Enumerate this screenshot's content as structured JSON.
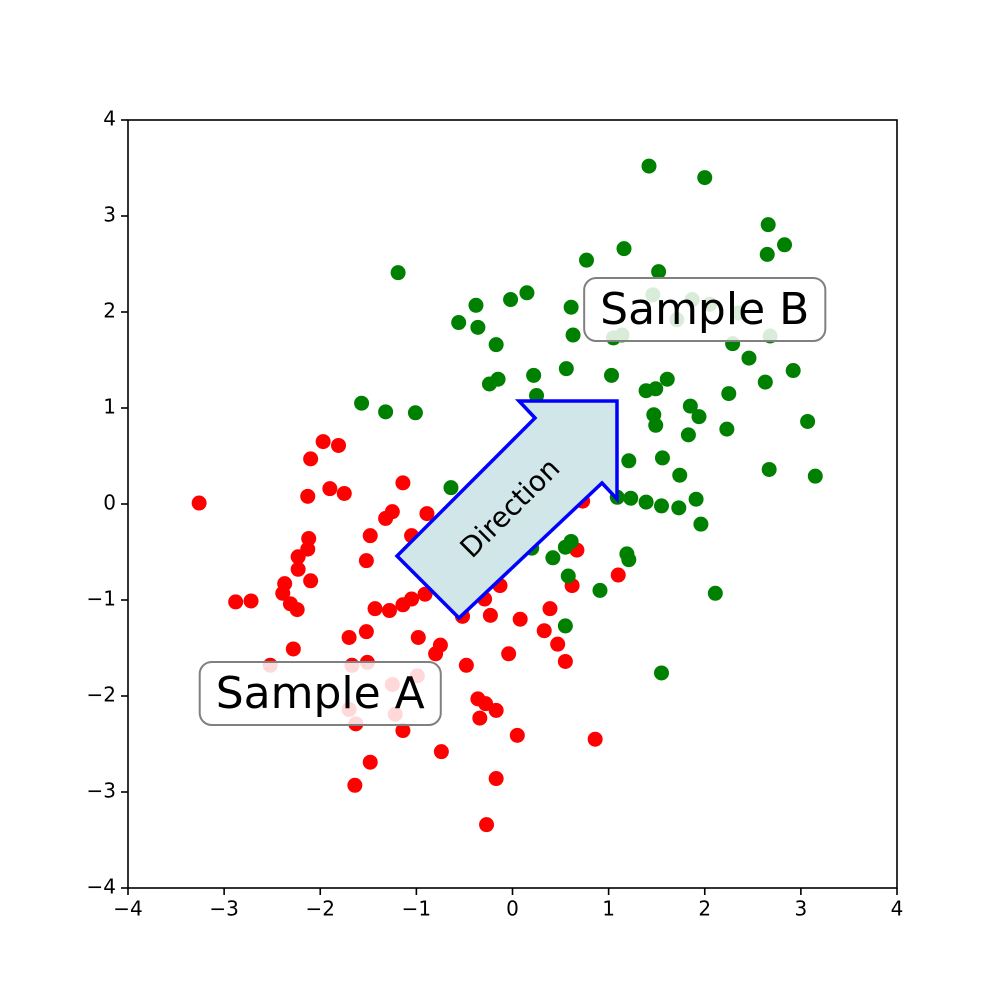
{
  "chart_data": {
    "type": "scatter",
    "xlim": [
      -4,
      4
    ],
    "ylim": [
      -4,
      4
    ],
    "xticks": [
      {
        "value": -4,
        "label": "−4"
      },
      {
        "value": -3,
        "label": "−3"
      },
      {
        "value": -2,
        "label": "−2"
      },
      {
        "value": -1,
        "label": "−1"
      },
      0,
      1,
      2,
      3,
      4
    ],
    "yticks": [
      {
        "value": -4,
        "label": "−4"
      },
      {
        "value": -3,
        "label": "−3"
      },
      {
        "value": -2,
        "label": "−2"
      },
      {
        "value": -1,
        "label": "−1"
      },
      0,
      1,
      2,
      3,
      4
    ],
    "series": [
      {
        "color": "red",
        "x": [
          -3.26,
          -2.88,
          -2.72,
          -1.97,
          -1.81,
          -2.1,
          -2.13,
          -1.9,
          -1.75,
          -1.14,
          -2.12,
          -2.13,
          -2.23,
          -2.23,
          -2.1,
          -2.37,
          -2.39,
          -2.31,
          -2.24,
          -1.48,
          -1.52,
          -1.43,
          -1.28,
          -1.14,
          -1.05,
          -0.91,
          -1.32,
          -1.25,
          -1.05,
          -0.89,
          -1.7,
          -1.52,
          -0.98,
          -0.75,
          -0.8,
          -0.48,
          -0.52,
          -0.52,
          -0.29,
          -0.23,
          -0.13,
          0.08,
          -0.04,
          0.39,
          0.33,
          0.47,
          0.55,
          0.62,
          0.67,
          0.44,
          0.73,
          1.1,
          0.86,
          -2.28,
          -2.52,
          -1.67,
          -1.51,
          -1.63,
          -1.7,
          -1.48,
          -1.64,
          -1.25,
          -1.22,
          -1.14,
          -0.74,
          -0.36,
          -0.28,
          -0.17,
          -0.34,
          0.05,
          -0.17,
          -0.27,
          -0.99
        ],
        "y": [
          0.01,
          -1.02,
          -1.01,
          0.65,
          0.61,
          0.47,
          0.08,
          0.16,
          0.11,
          0.22,
          -0.36,
          -0.47,
          -0.55,
          -0.68,
          -0.8,
          -0.83,
          -0.93,
          -1.04,
          -1.1,
          -0.33,
          -0.59,
          -1.09,
          -1.11,
          -1.05,
          -0.99,
          -0.94,
          -0.15,
          -0.08,
          -0.33,
          -0.1,
          -1.39,
          -1.33,
          -1.39,
          -1.47,
          -1.56,
          -1.68,
          -1.17,
          -1.08,
          -0.99,
          -1.16,
          -0.85,
          -1.2,
          -1.56,
          -1.09,
          -1.32,
          -1.46,
          -1.64,
          -0.85,
          -0.48,
          0.04,
          0.03,
          -0.74,
          -2.45,
          -1.51,
          -1.68,
          -1.68,
          -1.65,
          -2.29,
          -2.14,
          -2.69,
          -2.93,
          -1.88,
          -2.19,
          -2.36,
          -2.58,
          -2.03,
          -2.08,
          -2.15,
          -2.23,
          -2.41,
          -2.86,
          -3.34,
          -1.79
        ]
      },
      {
        "color": "green",
        "x": [
          1.42,
          2.0,
          2.66,
          2.83,
          2.65,
          1.16,
          0.77,
          1.52,
          -1.19,
          0.15,
          -0.02,
          -0.38,
          -0.56,
          -0.36,
          -0.17,
          2.46,
          0.22,
          0.56,
          1.03,
          1.61,
          -0.24,
          -0.15,
          1.39,
          1.49,
          2.25,
          2.63,
          2.92,
          0.25,
          -1.57,
          -1.32,
          -1.01,
          1.47,
          1.49,
          1.85,
          1.94,
          1.83,
          2.23,
          3.07,
          1.21,
          1.56,
          1.74,
          2.67,
          3.15,
          -0.64,
          1.09,
          1.23,
          1.39,
          1.55,
          1.73,
          1.91,
          1.96,
          0.2,
          0.42,
          0.55,
          0.61,
          1.19,
          1.21,
          0.58,
          0.91,
          2.11,
          0.55,
          1.55,
          1.87,
          2.05,
          0.61,
          0.63,
          1.05,
          1.14,
          1.71,
          2.35,
          2.29,
          2.68,
          1.46
        ],
        "y": [
          3.52,
          3.4,
          2.91,
          2.7,
          2.6,
          2.66,
          2.54,
          2.42,
          2.41,
          2.2,
          2.13,
          2.07,
          1.89,
          1.84,
          1.66,
          1.52,
          1.34,
          1.41,
          1.34,
          1.3,
          1.25,
          1.3,
          1.18,
          1.2,
          1.15,
          1.27,
          1.39,
          1.13,
          1.05,
          0.96,
          0.95,
          0.93,
          0.82,
          1.02,
          0.91,
          0.72,
          0.78,
          0.86,
          0.45,
          0.48,
          0.3,
          0.36,
          0.29,
          0.17,
          0.07,
          0.06,
          0.02,
          -0.02,
          -0.04,
          0.05,
          -0.21,
          -0.46,
          -0.56,
          -0.45,
          -0.39,
          -0.52,
          -0.58,
          -0.75,
          -0.9,
          -0.93,
          -1.27,
          -1.76,
          2.13,
          2.08,
          2.05,
          1.76,
          1.73,
          1.76,
          1.92,
          1.99,
          1.67,
          1.75,
          2.18
        ]
      }
    ],
    "annotations": [
      {
        "text": "Sample A",
        "x": -2,
        "y": -2
      },
      {
        "text": "Sample B",
        "x": 2,
        "y": 2
      },
      {
        "text": "Direction"
      }
    ]
  }
}
